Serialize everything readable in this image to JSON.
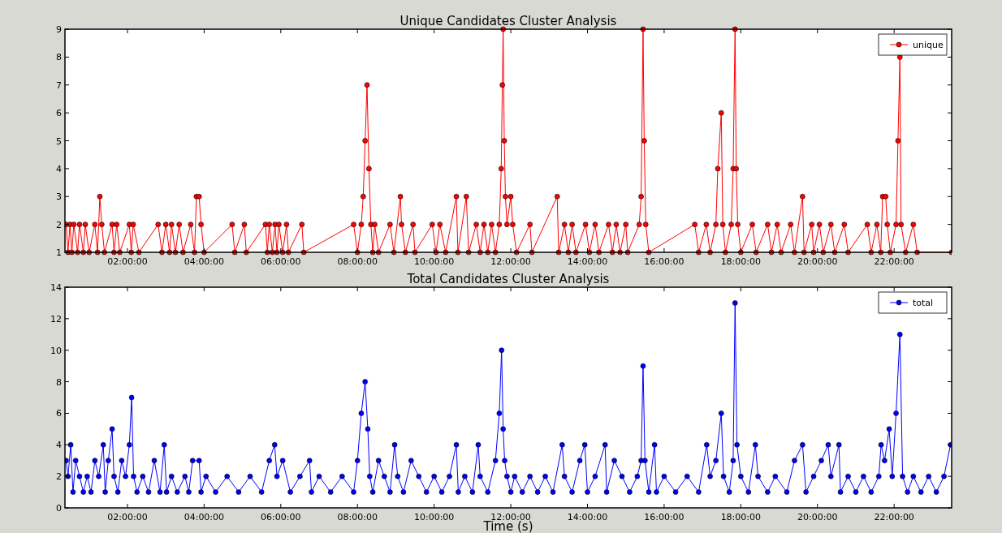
{
  "chart_data": [
    {
      "type": "line",
      "title": "Unique Candidates Cluster Analysis",
      "marker": "circle",
      "legend": "top right",
      "xlim": [
        0.37,
        23.5
      ],
      "xticks": [
        {
          "value": 2,
          "label": "02:00:00"
        },
        {
          "value": 4,
          "label": "04:00:00"
        },
        {
          "value": 6,
          "label": "06:00:00"
        },
        {
          "value": 8,
          "label": "08:00:00"
        },
        {
          "value": 10,
          "label": "10:00:00"
        },
        {
          "value": 12,
          "label": "12:00:00"
        },
        {
          "value": 14,
          "label": "14:00:00"
        },
        {
          "value": 16,
          "label": "16:00:00"
        },
        {
          "value": 18,
          "label": "18:00:00"
        },
        {
          "value": 20,
          "label": "20:00:00"
        },
        {
          "value": 22,
          "label": "22:00:00"
        }
      ],
      "ylim": [
        1,
        9
      ],
      "yticks": [
        1,
        2,
        3,
        4,
        5,
        6,
        7,
        8,
        9
      ],
      "series": [
        {
          "name": "unique",
          "color": "#ff0000",
          "x": [
            0.4,
            0.45,
            0.5,
            0.55,
            0.6,
            0.7,
            0.75,
            0.85,
            0.9,
            1.0,
            1.15,
            1.22,
            1.28,
            1.33,
            1.4,
            1.6,
            1.65,
            1.72,
            1.8,
            2.05,
            2.1,
            2.15,
            2.3,
            2.8,
            2.9,
            3.0,
            3.1,
            3.15,
            3.25,
            3.35,
            3.45,
            3.65,
            3.75,
            3.8,
            3.87,
            3.92,
            4.0,
            4.73,
            4.8,
            5.05,
            5.1,
            5.6,
            5.65,
            5.7,
            5.78,
            5.85,
            5.9,
            5.95,
            6.05,
            6.15,
            6.2,
            6.55,
            6.6,
            7.9,
            8.0,
            8.1,
            8.15,
            8.2,
            8.25,
            8.3,
            8.35,
            8.4,
            8.45,
            8.55,
            8.85,
            8.95,
            9.12,
            9.15,
            9.25,
            9.45,
            9.5,
            9.95,
            10.05,
            10.15,
            10.3,
            10.58,
            10.62,
            10.84,
            10.9,
            11.1,
            11.2,
            11.3,
            11.4,
            11.5,
            11.6,
            11.7,
            11.75,
            11.78,
            11.8,
            11.83,
            11.86,
            11.9,
            12.0,
            12.05,
            12.15,
            12.5,
            12.55,
            13.21,
            13.25,
            13.4,
            13.5,
            13.6,
            13.7,
            13.95,
            14.05,
            14.2,
            14.3,
            14.55,
            14.65,
            14.75,
            14.85,
            15.0,
            15.05,
            15.35,
            15.4,
            15.45,
            15.48,
            15.52,
            15.6,
            16.8,
            16.9,
            17.1,
            17.2,
            17.35,
            17.4,
            17.49,
            17.53,
            17.6,
            17.75,
            17.8,
            17.85,
            17.88,
            17.92,
            18.0,
            18.3,
            18.4,
            18.7,
            18.8,
            18.95,
            19.05,
            19.3,
            19.4,
            19.61,
            19.65,
            19.85,
            19.9,
            20.05,
            20.15,
            20.35,
            20.45,
            20.7,
            20.8,
            21.3,
            21.4,
            21.55,
            21.65,
            21.7,
            21.78,
            21.82,
            21.9,
            22.05,
            22.1,
            22.15,
            22.18,
            22.3,
            22.5,
            22.6,
            23.5
          ],
          "values": [
            2,
            1,
            2,
            1,
            2,
            1,
            2,
            1,
            2,
            1,
            2,
            1,
            3,
            2,
            1,
            2,
            1,
            2,
            1,
            2,
            1,
            2,
            1,
            2,
            1,
            2,
            1,
            2,
            1,
            2,
            1,
            2,
            1,
            3,
            3,
            2,
            1,
            2,
            1,
            2,
            1,
            2,
            1,
            2,
            1,
            2,
            1,
            2,
            1,
            2,
            1,
            2,
            1,
            2,
            1,
            2,
            3,
            5,
            7,
            4,
            2,
            1,
            2,
            1,
            2,
            1,
            3,
            2,
            1,
            2,
            1,
            2,
            1,
            2,
            1,
            3,
            1,
            3,
            1,
            2,
            1,
            2,
            1,
            2,
            1,
            2,
            4,
            7,
            9,
            5,
            3,
            2,
            3,
            2,
            1,
            2,
            1,
            3,
            1,
            2,
            1,
            2,
            1,
            2,
            1,
            2,
            1,
            2,
            1,
            2,
            1,
            2,
            1,
            2,
            3,
            9,
            5,
            2,
            1,
            2,
            1,
            2,
            1,
            2,
            4,
            6,
            2,
            1,
            2,
            4,
            9,
            4,
            2,
            1,
            2,
            1,
            2,
            1,
            2,
            1,
            2,
            1,
            3,
            1,
            2,
            1,
            2,
            1,
            2,
            1,
            2,
            1,
            2,
            1,
            2,
            1,
            3,
            3,
            2,
            1,
            2,
            5,
            8,
            2,
            1,
            2,
            1,
            1
          ]
        }
      ]
    },
    {
      "type": "line",
      "title": "Total Candidates Cluster Analysis",
      "xlabel": "Time (s)",
      "marker": "circle",
      "legend": "top right",
      "xlim": [
        0.37,
        23.5
      ],
      "xticks": [
        {
          "value": 2,
          "label": "02:00:00"
        },
        {
          "value": 4,
          "label": "04:00:00"
        },
        {
          "value": 6,
          "label": "06:00:00"
        },
        {
          "value": 8,
          "label": "08:00:00"
        },
        {
          "value": 10,
          "label": "10:00:00"
        },
        {
          "value": 12,
          "label": "12:00:00"
        },
        {
          "value": 14,
          "label": "14:00:00"
        },
        {
          "value": 16,
          "label": "16:00:00"
        },
        {
          "value": 18,
          "label": "18:00:00"
        },
        {
          "value": 20,
          "label": "20:00:00"
        },
        {
          "value": 22,
          "label": "22:00:00"
        }
      ],
      "ylim": [
        0,
        14
      ],
      "yticks": [
        0,
        2,
        4,
        6,
        8,
        10,
        12,
        14
      ],
      "series": [
        {
          "name": "total",
          "color": "#0000ff",
          "x": [
            0.4,
            0.45,
            0.52,
            0.58,
            0.65,
            0.75,
            0.85,
            0.95,
            1.05,
            1.15,
            1.25,
            1.37,
            1.42,
            1.5,
            1.6,
            1.65,
            1.75,
            1.85,
            1.95,
            2.05,
            2.11,
            2.16,
            2.25,
            2.4,
            2.55,
            2.7,
            2.85,
            2.96,
            3.02,
            3.15,
            3.3,
            3.5,
            3.6,
            3.7,
            3.87,
            3.92,
            4.05,
            4.3,
            4.6,
            4.9,
            5.2,
            5.5,
            5.7,
            5.84,
            5.9,
            6.05,
            6.25,
            6.5,
            6.75,
            6.8,
            7.0,
            7.3,
            7.6,
            7.9,
            8.0,
            8.1,
            8.2,
            8.27,
            8.32,
            8.4,
            8.55,
            8.7,
            8.85,
            8.97,
            9.05,
            9.2,
            9.4,
            9.6,
            9.8,
            10.0,
            10.2,
            10.4,
            10.58,
            10.63,
            10.8,
            11.0,
            11.15,
            11.2,
            11.4,
            11.6,
            11.7,
            11.76,
            11.8,
            11.84,
            11.9,
            12.0,
            12.1,
            12.3,
            12.5,
            12.7,
            12.9,
            13.1,
            13.34,
            13.4,
            13.6,
            13.8,
            13.93,
            14.0,
            14.2,
            14.46,
            14.5,
            14.7,
            14.9,
            15.1,
            15.3,
            15.4,
            15.45,
            15.5,
            15.6,
            15.75,
            15.8,
            16.0,
            16.3,
            16.6,
            16.9,
            17.11,
            17.2,
            17.35,
            17.49,
            17.55,
            17.7,
            17.8,
            17.85,
            17.9,
            18.0,
            18.2,
            18.38,
            18.45,
            18.7,
            18.9,
            19.2,
            19.4,
            19.61,
            19.7,
            19.9,
            20.1,
            20.28,
            20.35,
            20.56,
            20.6,
            20.8,
            21.0,
            21.2,
            21.4,
            21.6,
            21.66,
            21.75,
            21.87,
            21.95,
            22.05,
            22.15,
            22.22,
            22.35,
            22.5,
            22.7,
            22.9,
            23.1,
            23.3,
            23.47
          ],
          "values": [
            3,
            2,
            4,
            1,
            3,
            2,
            1,
            2,
            1,
            3,
            2,
            4,
            1,
            3,
            5,
            2,
            1,
            3,
            2,
            4,
            7,
            2,
            1,
            2,
            1,
            3,
            1,
            4,
            1,
            2,
            1,
            2,
            1,
            3,
            3,
            1,
            2,
            1,
            2,
            1,
            2,
            1,
            3,
            4,
            2,
            3,
            1,
            2,
            3,
            1,
            2,
            1,
            2,
            1,
            3,
            6,
            8,
            5,
            2,
            1,
            3,
            2,
            1,
            4,
            2,
            1,
            3,
            2,
            1,
            2,
            1,
            2,
            4,
            1,
            2,
            1,
            4,
            2,
            1,
            3,
            6,
            10,
            5,
            3,
            2,
            1,
            2,
            1,
            2,
            1,
            2,
            1,
            4,
            2,
            1,
            3,
            4,
            1,
            2,
            4,
            1,
            3,
            2,
            1,
            2,
            3,
            9,
            3,
            1,
            4,
            1,
            2,
            1,
            2,
            1,
            4,
            2,
            3,
            6,
            2,
            1,
            3,
            13,
            4,
            2,
            1,
            4,
            2,
            1,
            2,
            1,
            3,
            4,
            1,
            2,
            3,
            4,
            2,
            4,
            1,
            2,
            1,
            2,
            1,
            2,
            4,
            3,
            5,
            2,
            6,
            11,
            2,
            1,
            2,
            1,
            2,
            1,
            2,
            4
          ]
        }
      ]
    }
  ]
}
